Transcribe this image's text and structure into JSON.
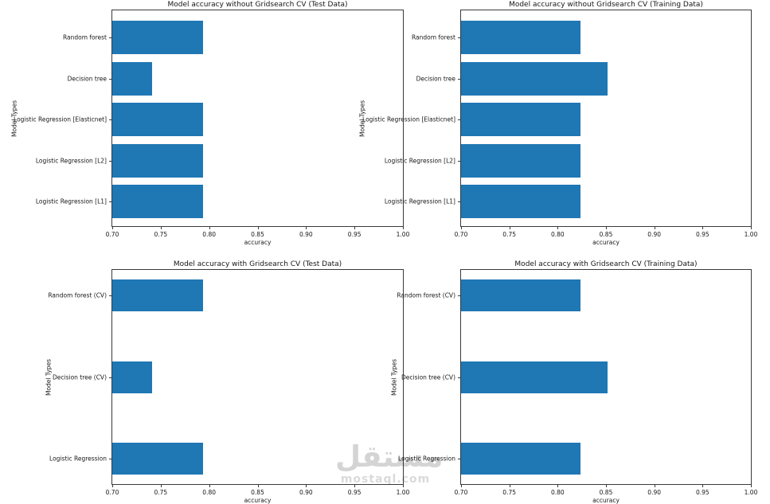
{
  "style": {
    "bar_color": "#1f77b4",
    "spine_color": "#3a3a3a",
    "text_color": "#1f1f1f",
    "watermark_color": "#d4d4d4",
    "background": "#ffffff"
  },
  "watermark": {
    "arabic": "مستقل",
    "domain": "mostaql.com"
  },
  "chart_data": [
    {
      "type": "bar",
      "orientation": "horizontal",
      "position": "top-left",
      "title": "Model accuracy without Gridsearch CV (Test Data)",
      "xlabel": "accuracy",
      "ylabel": "Model Types",
      "xlim": [
        0.7,
        1.0
      ],
      "xtick_labels": [
        "0.70",
        "0.75",
        "0.80",
        "0.85",
        "0.90",
        "0.95",
        "1.00"
      ],
      "category_order": "top-to-bottom",
      "categories": [
        "Random forest",
        "Decision tree",
        "Logistic Regression [Elasticnet]",
        "Logistic Regression [L2]",
        "Logistic Regression [L1]"
      ],
      "values": [
        0.794,
        0.741,
        0.794,
        0.794,
        0.794
      ],
      "grid": false
    },
    {
      "type": "bar",
      "orientation": "horizontal",
      "position": "top-right",
      "title": "Model accuracy without Gridsearch CV (Training Data)",
      "xlabel": "accuracy",
      "ylabel": "Model Types",
      "xlim": [
        0.7,
        1.0
      ],
      "xtick_labels": [
        "0.70",
        "0.75",
        "0.80",
        "0.85",
        "0.90",
        "0.95",
        "1.00"
      ],
      "category_order": "top-to-bottom",
      "categories": [
        "Random forest",
        "Decision tree",
        "Logistic Regression [Elasticnet]",
        "Logistic Regression [L2]",
        "Logistic Regression [L1]"
      ],
      "values": [
        0.824,
        0.852,
        0.824,
        0.824,
        0.824
      ],
      "grid": false
    },
    {
      "type": "bar",
      "orientation": "horizontal",
      "position": "bottom-left",
      "title": "Model accuracy with Gridsearch CV (Test Data)",
      "xlabel": "accuracy",
      "ylabel": "Model Types",
      "xlim": [
        0.7,
        1.0
      ],
      "xtick_labels": [
        "0.70",
        "0.75",
        "0.80",
        "0.85",
        "0.90",
        "0.95",
        "1.00"
      ],
      "category_order": "top-to-bottom",
      "categories": [
        "Random forest (CV)",
        "Decision tree (CV)",
        "Logistic Regression"
      ],
      "values": [
        0.794,
        0.741,
        0.794
      ],
      "grid": false
    },
    {
      "type": "bar",
      "orientation": "horizontal",
      "position": "bottom-right",
      "title": "Model accuracy with Gridsearch CV (Training Data)",
      "xlabel": "accuracy",
      "ylabel": "Model Types",
      "xlim": [
        0.7,
        1.0
      ],
      "xtick_labels": [
        "0.70",
        "0.75",
        "0.80",
        "0.85",
        "0.90",
        "0.95",
        "1.00"
      ],
      "category_order": "top-to-bottom",
      "categories": [
        "Random forest (CV)",
        "Decision tree (CV)",
        "Logistic Regression"
      ],
      "values": [
        0.824,
        0.852,
        0.824
      ],
      "grid": false
    }
  ]
}
